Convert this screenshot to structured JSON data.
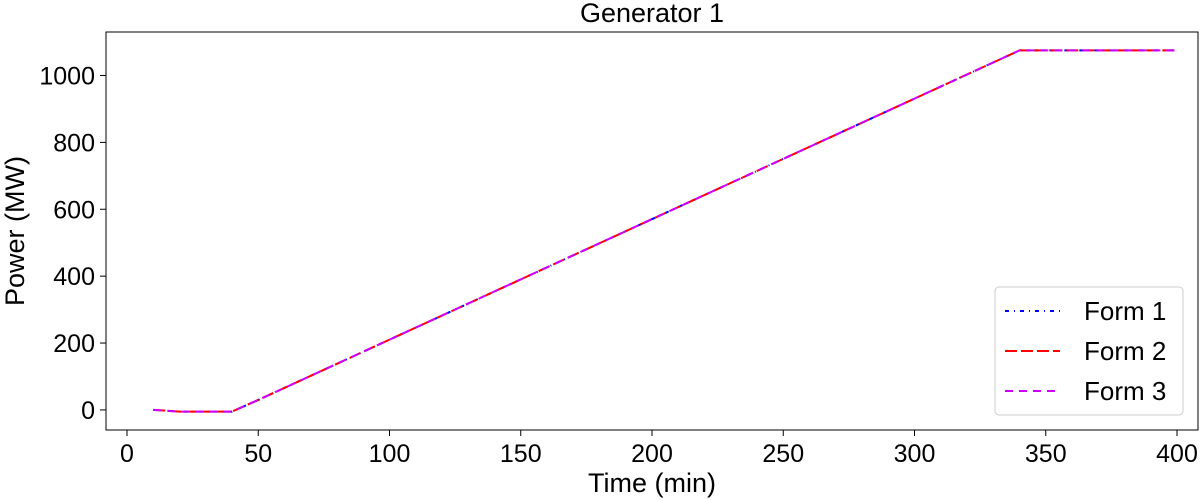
{
  "chart_data": {
    "type": "line",
    "title": "Generator 1",
    "xlabel": "Time (min)",
    "ylabel": "Power (MW)",
    "xlim": [
      -8,
      408
    ],
    "ylim": [
      -60,
      1130
    ],
    "xticks": [
      0,
      50,
      100,
      150,
      200,
      250,
      300,
      350,
      400
    ],
    "yticks": [
      0,
      200,
      400,
      600,
      800,
      1000
    ],
    "grid": false,
    "legend": "bottom-right",
    "series": [
      {
        "name": "Form 1",
        "color": "#0000ff",
        "style": "dashdot",
        "x": [
          10,
          20,
          30,
          40,
          50,
          340,
          400
        ],
        "y": [
          0,
          -5,
          -5,
          -5,
          30,
          1075,
          1075
        ]
      },
      {
        "name": "Form 2",
        "color": "#ff0000",
        "style": "longdash",
        "x": [
          10,
          20,
          30,
          40,
          50,
          340,
          400
        ],
        "y": [
          0,
          -5,
          -5,
          -5,
          30,
          1075,
          1075
        ]
      },
      {
        "name": "Form 3",
        "color": "#cc00ff",
        "style": "dashed",
        "x": [
          10,
          20,
          30,
          40,
          50,
          340,
          400
        ],
        "y": [
          0,
          -5,
          -5,
          -5,
          30,
          1075,
          1075
        ]
      }
    ]
  }
}
